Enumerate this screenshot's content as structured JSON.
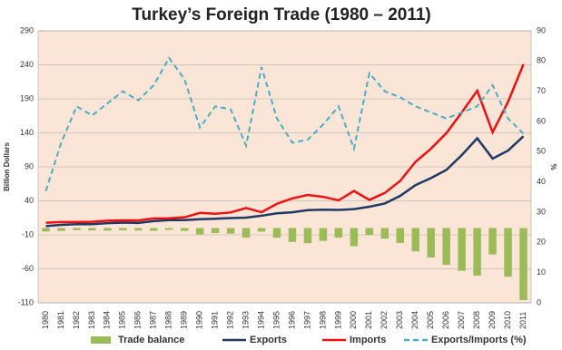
{
  "chart_data": {
    "type": "combo",
    "title": "Turkey’s Foreign Trade (1980 – 2011)",
    "y_label": "Billion Dollars",
    "y2_label": "%",
    "categories": [
      "1980",
      "1981",
      "1982",
      "1983",
      "1984",
      "1985",
      "1986",
      "1987",
      "1988",
      "1989",
      "1990",
      "1991",
      "1992",
      "1993",
      "1994",
      "1995",
      "1996",
      "1997",
      "1998",
      "1999",
      "2000",
      "2001",
      "2002",
      "2003",
      "2004",
      "2005",
      "2006",
      "2007",
      "2008",
      "2009",
      "2010",
      "2011"
    ],
    "ylim": [
      -110,
      290
    ],
    "yticks": [
      -110,
      -60,
      -10,
      40,
      90,
      140,
      190,
      240,
      290
    ],
    "y2lim": [
      0,
      90
    ],
    "y2ticks": [
      0,
      10,
      20,
      30,
      40,
      50,
      60,
      70,
      80,
      90
    ],
    "grid": true,
    "legend": "bottom",
    "background": "#fbe5d6",
    "series": [
      {
        "name": "Trade balance",
        "type": "bar",
        "color": "#9bbb59",
        "values": [
          -5.0,
          -4.2,
          -3.1,
          -3.5,
          -3.7,
          -3.3,
          -3.6,
          -4.0,
          -2.6,
          -4.2,
          -9.3,
          -7.4,
          -8.2,
          -14.1,
          -5.2,
          -14.1,
          -20.4,
          -22.3,
          -18.9,
          -14.1,
          -26.7,
          -10.1,
          -15.5,
          -22.0,
          -34.3,
          -43.3,
          -54.1,
          -62.8,
          -70.0,
          -38.8,
          -71.6,
          -105.9
        ]
      },
      {
        "name": "Exports",
        "type": "line",
        "color": "#1f3864",
        "values": [
          2.9,
          4.7,
          5.7,
          5.7,
          7.1,
          8.0,
          7.5,
          10.2,
          11.7,
          11.6,
          13.0,
          13.6,
          14.7,
          15.3,
          18.1,
          21.6,
          23.2,
          26.3,
          27.0,
          26.6,
          27.8,
          31.3,
          36.1,
          47.3,
          63.2,
          73.5,
          85.5,
          107.3,
          132.0,
          102.1,
          113.9,
          134.9
        ]
      },
      {
        "name": "Imports",
        "type": "line",
        "color": "#ee1111",
        "values": [
          7.9,
          8.9,
          8.8,
          9.2,
          10.8,
          11.3,
          11.1,
          14.2,
          14.3,
          15.8,
          22.3,
          21.0,
          22.9,
          29.4,
          23.3,
          35.7,
          43.6,
          48.6,
          45.9,
          40.7,
          54.5,
          41.4,
          51.6,
          69.3,
          97.5,
          116.8,
          139.6,
          170.1,
          202.0,
          140.9,
          185.5,
          240.8
        ]
      },
      {
        "name": "Exports/Imports (%)",
        "type": "line",
        "dashed": true,
        "axis": "y2",
        "color": "#4bacc6",
        "values": [
          37,
          53,
          65,
          62,
          66,
          70,
          67,
          72,
          81,
          74,
          58,
          65,
          64,
          52,
          78,
          61,
          53,
          54,
          59,
          65,
          51,
          76,
          70,
          68,
          65,
          63,
          61,
          63,
          65,
          72,
          61,
          56
        ]
      }
    ]
  }
}
